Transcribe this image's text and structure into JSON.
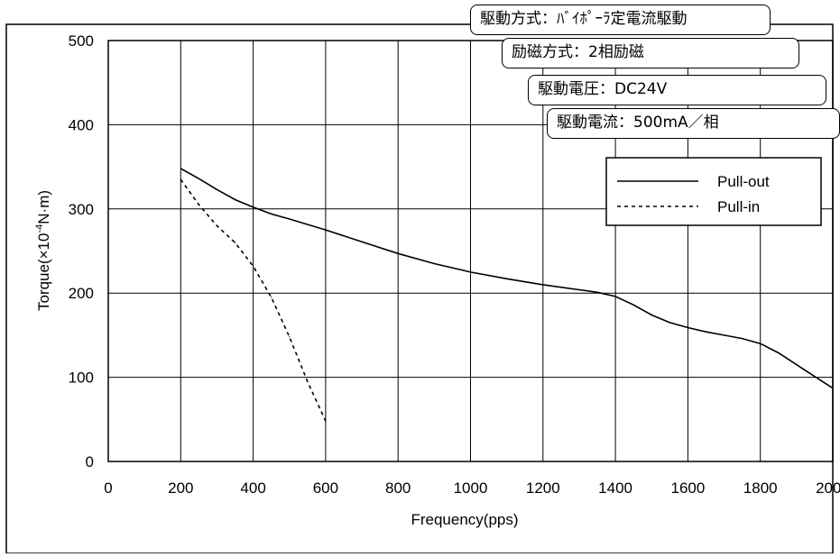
{
  "notes": {
    "drive_method": "駆動方式：ﾊﾞｲﾎﾟｰﾗ定電流駆動",
    "excitation": "励磁方式：2相励磁",
    "drive_voltage": "駆動電圧：DC24V",
    "drive_current": "駆動電流：500mA／相"
  },
  "chart_data": {
    "type": "line",
    "xlabel": "Frequency(pps)",
    "ylabel_main": "Torque(×10",
    "ylabel_sup": "-4",
    "ylabel_tail": "N·m)",
    "xlim": [
      0,
      2000
    ],
    "ylim": [
      0,
      500
    ],
    "xticks": [
      "0",
      "200",
      "400",
      "600",
      "800",
      "1000",
      "1200",
      "1400",
      "1600",
      "1800",
      "2000"
    ],
    "yticks": [
      "0",
      "100",
      "200",
      "300",
      "400",
      "500"
    ],
    "grid": true,
    "legend_position": "top-right",
    "series": [
      {
        "name": "Pull-out",
        "style": "solid",
        "color": "#000000",
        "x": [
          200,
          250,
          300,
          350,
          400,
          450,
          500,
          600,
          700,
          800,
          900,
          1000,
          1100,
          1200,
          1300,
          1350,
          1400,
          1450,
          1500,
          1550,
          1600,
          1650,
          1700,
          1750,
          1800,
          1850,
          1900,
          1950,
          2000
        ],
        "y": [
          348,
          336,
          323,
          311,
          302,
          294,
          288,
          275,
          261,
          247,
          235,
          225,
          217,
          210,
          204,
          201,
          196,
          186,
          174,
          165,
          159,
          154,
          150,
          146,
          140,
          129,
          115,
          101,
          87
        ]
      },
      {
        "name": "Pull-in",
        "style": "dashed",
        "color": "#000000",
        "x": [
          200,
          250,
          300,
          350,
          400,
          450,
          500,
          550,
          600
        ],
        "y": [
          335,
          305,
          280,
          260,
          232,
          195,
          148,
          95,
          48
        ]
      }
    ]
  }
}
